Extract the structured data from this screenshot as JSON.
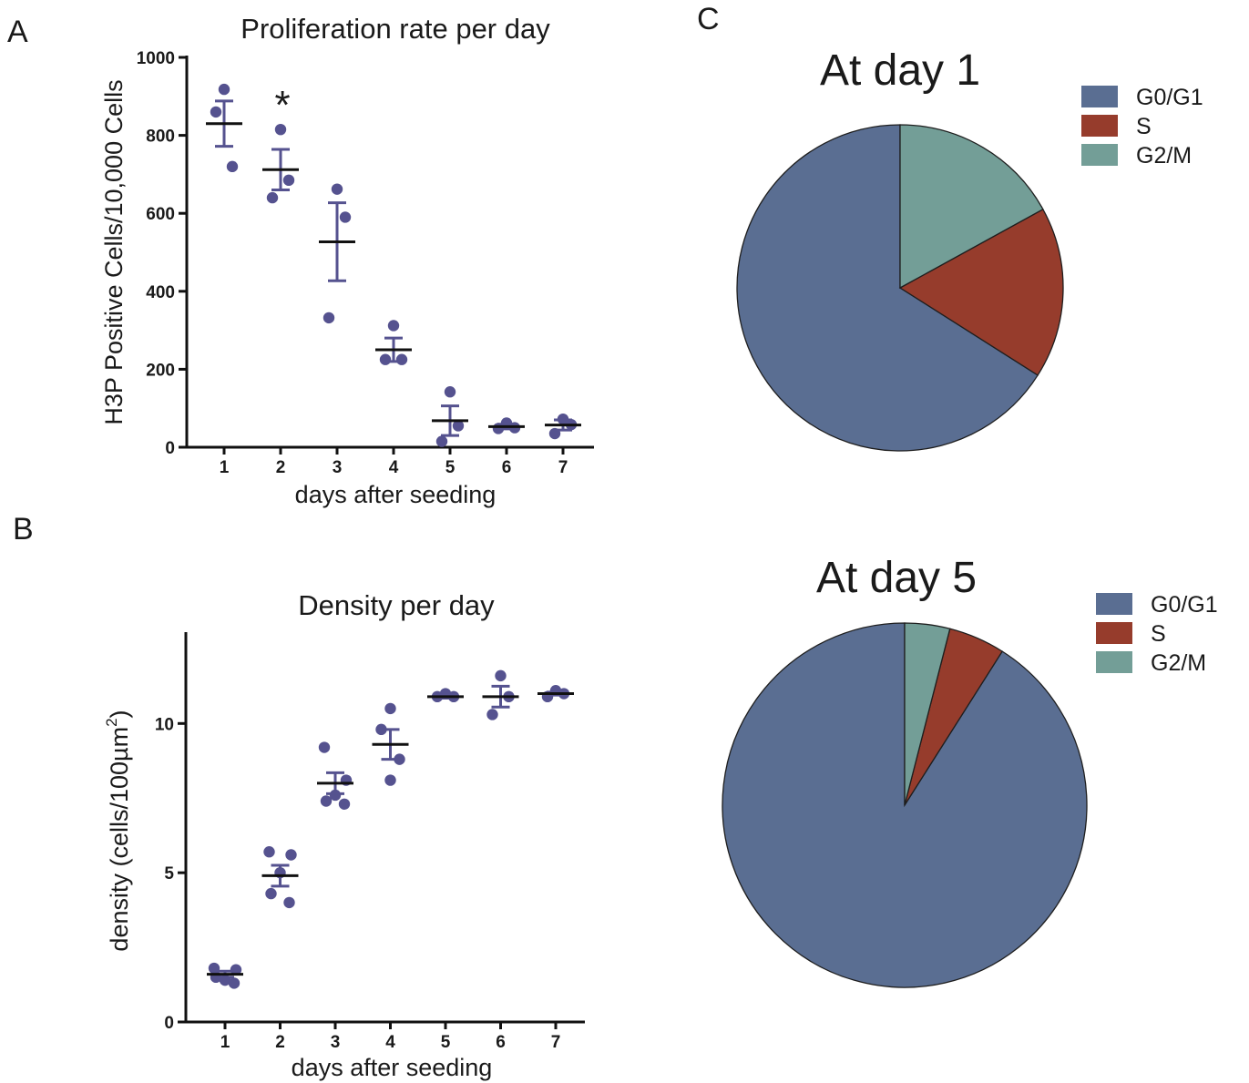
{
  "panels": {
    "a": {
      "letter": "A"
    },
    "b": {
      "letter": "B"
    },
    "c": {
      "letter": "C"
    }
  },
  "chart_data": [
    {
      "id": "proliferation",
      "type": "scatter",
      "title": "Proliferation rate per day",
      "xlabel": "days after seeding",
      "ylabel": "H3P Positive Cells/10,000 Cells",
      "xticks": [
        "1",
        "2",
        "3",
        "4",
        "5",
        "6",
        "7"
      ],
      "yticks": [
        0,
        200,
        400,
        600,
        800,
        1000
      ],
      "ytick_labels": [
        "0",
        "200",
        "400",
        "600",
        "800",
        "1000"
      ],
      "ylim": [
        0,
        1000
      ],
      "annotation": {
        "text": "*",
        "day": 2
      },
      "point_color": "#55528f",
      "groups": [
        {
          "day": 1,
          "points": [
            918,
            720,
            860
          ],
          "mean": 830,
          "sem": 58
        },
        {
          "day": 2,
          "points": [
            815,
            685,
            640
          ],
          "mean": 712,
          "sem": 52
        },
        {
          "day": 3,
          "points": [
            662,
            590,
            332
          ],
          "mean": 527,
          "sem": 100
        },
        {
          "day": 4,
          "points": [
            312,
            225,
            225
          ],
          "mean": 250,
          "sem": 30
        },
        {
          "day": 5,
          "points": [
            142,
            55,
            15
          ],
          "mean": 68,
          "sem": 38
        },
        {
          "day": 6,
          "points": [
            62,
            50,
            48
          ],
          "mean": 53,
          "sem": 6
        },
        {
          "day": 7,
          "points": [
            72,
            58,
            35
          ],
          "mean": 57,
          "sem": 13
        }
      ]
    },
    {
      "id": "density",
      "type": "scatter",
      "title": "Density per day",
      "xlabel": "days after seeding",
      "ylabel": "density (cells/100µm",
      "ylabel_superscript": "2",
      "ylabel_close": ")",
      "xticks": [
        "1",
        "2",
        "3",
        "4",
        "5",
        "6",
        "7"
      ],
      "yticks": [
        0,
        5,
        10
      ],
      "ytick_labels": [
        "0",
        "5",
        "10"
      ],
      "ylim": [
        0,
        13
      ],
      "point_color": "#55528f",
      "groups": [
        {
          "day": 1,
          "points": [
            1.8,
            1.75,
            1.4,
            1.5,
            1.3
          ],
          "mean": 1.6,
          "sem": 0.1
        },
        {
          "day": 2,
          "points": [
            5.7,
            5.6,
            5.0,
            4.3,
            4.0
          ],
          "mean": 4.9,
          "sem": 0.35
        },
        {
          "day": 3,
          "points": [
            9.2,
            8.1,
            7.6,
            7.4,
            7.3
          ],
          "mean": 8.0,
          "sem": 0.35
        },
        {
          "day": 4,
          "points": [
            10.5,
            9.8,
            8.8,
            8.1
          ],
          "mean": 9.3,
          "sem": 0.5
        },
        {
          "day": 5,
          "points": [
            11.0,
            10.9,
            10.9
          ],
          "mean": 10.9,
          "sem": 0.05
        },
        {
          "day": 6,
          "points": [
            11.6,
            10.9,
            10.3
          ],
          "mean": 10.9,
          "sem": 0.35
        },
        {
          "day": 7,
          "points": [
            11.1,
            11.0,
            10.9
          ],
          "mean": 11.0,
          "sem": 0.05
        }
      ]
    },
    {
      "id": "pie-day1",
      "type": "pie",
      "title": "At day 1",
      "legend_position": "top-right",
      "categories": [
        "G0/G1",
        "S",
        "G2/M"
      ],
      "values": [
        66,
        17,
        17
      ],
      "colors": [
        "#5a6e92",
        "#963c2c",
        "#739e97"
      ]
    },
    {
      "id": "pie-day5",
      "type": "pie",
      "title": "At day 5",
      "legend_position": "top-right",
      "categories": [
        "G0/G1",
        "S",
        "G2/M"
      ],
      "values": [
        91,
        5,
        4
      ],
      "colors": [
        "#5a6e92",
        "#963c2c",
        "#739e97"
      ]
    }
  ]
}
